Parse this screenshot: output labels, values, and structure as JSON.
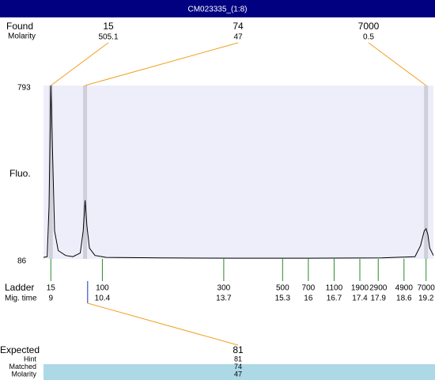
{
  "header": {
    "title": "CM023335_(1:8)"
  },
  "found": {
    "label": "Found",
    "molarity_label": "Molarity",
    "peaks": [
      {
        "size": 15,
        "molarity": 505.1,
        "time": 9
      },
      {
        "size": 74,
        "molarity": 47,
        "time": 9.93
      },
      {
        "size": 7000,
        "molarity": 0.5,
        "time": 19.2
      }
    ]
  },
  "plot": {
    "y_label": "Fluo.",
    "xlim": [
      8.8,
      19.4
    ],
    "ylim": [
      86,
      793
    ],
    "yticks": [
      86,
      793
    ],
    "trace": {
      "x": [
        8.8,
        8.9,
        8.95,
        9.0,
        9.05,
        9.1,
        9.2,
        9.4,
        9.6,
        9.8,
        9.88,
        9.93,
        9.98,
        10.05,
        10.2,
        10.5,
        12,
        14,
        16,
        18,
        18.9,
        19.05,
        19.15,
        19.2,
        19.25,
        19.3,
        19.4
      ],
      "y": [
        92,
        95,
        300,
        793,
        500,
        200,
        120,
        100,
        95,
        110,
        200,
        325,
        220,
        130,
        100,
        92,
        90,
        89,
        89,
        90,
        95,
        140,
        200,
        209,
        185,
        130,
        100
      ]
    }
  },
  "ladder": {
    "label": "Ladder",
    "time_label": "Mig. time",
    "sizes": [
      15,
      100,
      300,
      500,
      700,
      1100,
      1900,
      2900,
      4900,
      7000
    ],
    "times": [
      9,
      10.4,
      13.7,
      15.3,
      16,
      16.7,
      17.4,
      17.9,
      18.6,
      19.2
    ]
  },
  "expected": {
    "label": "Expected",
    "size": 81,
    "time": 10.0,
    "rows": [
      {
        "label": "Hint",
        "value": 81
      },
      {
        "label": "Matched",
        "value": 74
      },
      {
        "label": "Molarity",
        "value": 47
      }
    ]
  }
}
